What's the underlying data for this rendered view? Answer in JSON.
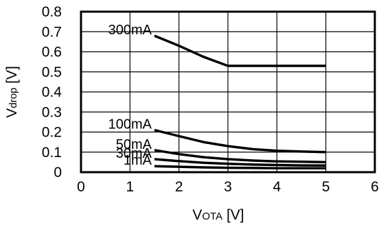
{
  "chart_data": {
    "type": "line",
    "xlabel": {
      "main": "V",
      "sub": "OTA",
      "unit": " [V]"
    },
    "ylabel": {
      "main": "V",
      "sub": "drop",
      "unit": " [V]"
    },
    "xlim": [
      0,
      6
    ],
    "ylim": [
      0,
      0.8
    ],
    "grid": true,
    "legend": "labels on curves (left side)",
    "xticks": [
      "0",
      "1",
      "2",
      "3",
      "4",
      "5",
      "6"
    ],
    "yticks": [
      "0",
      "0.1",
      "0.2",
      "0.3",
      "0.4",
      "0.5",
      "0.6",
      "0.7",
      "0.8"
    ],
    "series": [
      {
        "name": "300mA",
        "x": [
          1.5,
          2.0,
          2.5,
          3.0,
          3.5,
          4.0,
          4.5,
          5.0
        ],
        "y": [
          0.68,
          0.63,
          0.575,
          0.53,
          0.53,
          0.53,
          0.53,
          0.53
        ]
      },
      {
        "name": "100mA",
        "x": [
          1.5,
          2.0,
          2.5,
          3.0,
          3.5,
          4.0,
          4.5,
          5.0
        ],
        "y": [
          0.21,
          0.18,
          0.15,
          0.13,
          0.115,
          0.107,
          0.103,
          0.1
        ]
      },
      {
        "name": "50mA",
        "x": [
          1.5,
          2.0,
          2.5,
          3.0,
          3.5,
          4.0,
          4.5,
          5.0
        ],
        "y": [
          0.11,
          0.09,
          0.075,
          0.065,
          0.058,
          0.054,
          0.052,
          0.05
        ]
      },
      {
        "name": "30mA",
        "x": [
          1.5,
          2.0,
          2.5,
          3.0,
          3.5,
          4.0,
          4.5,
          5.0
        ],
        "y": [
          0.065,
          0.055,
          0.047,
          0.042,
          0.038,
          0.036,
          0.034,
          0.033
        ]
      },
      {
        "name": "1mA",
        "x": [
          1.5,
          2.0,
          2.5,
          3.0,
          3.5,
          4.0,
          4.5,
          5.0
        ],
        "y": [
          0.03,
          0.027,
          0.024,
          0.022,
          0.021,
          0.02,
          0.02,
          0.02
        ]
      }
    ]
  }
}
